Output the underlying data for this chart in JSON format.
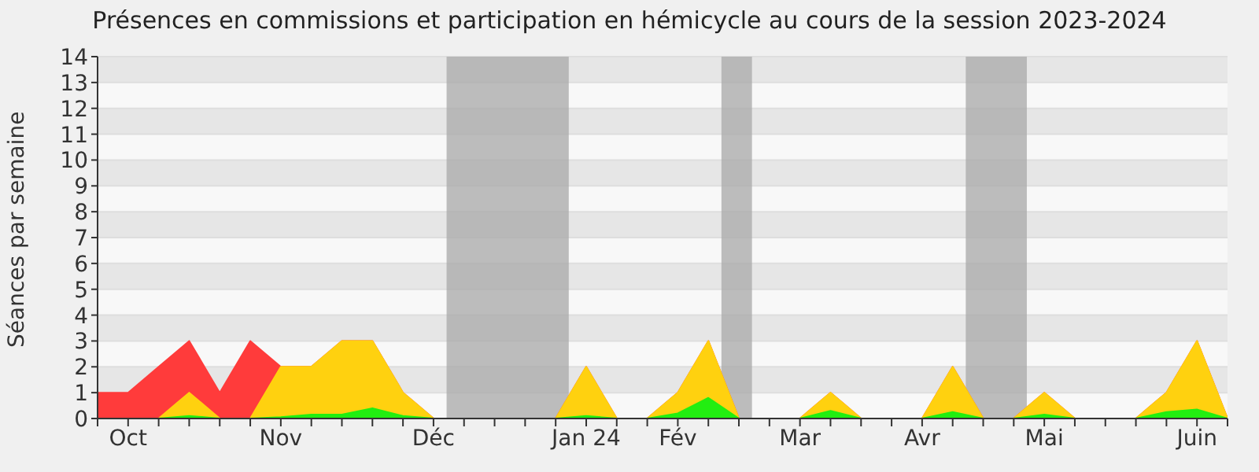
{
  "chart_data": {
    "type": "area",
    "title": "Présences en commissions et participation en hémicycle au cours de la session 2023-2024",
    "ylabel": "Séances par semaine",
    "x": [
      "2023-09-25",
      "2023-10-02",
      "2023-10-09",
      "2023-10-16",
      "2023-10-23",
      "2023-10-30",
      "2023-11-06",
      "2023-11-13",
      "2023-11-20",
      "2023-11-27",
      "2023-12-04",
      "2023-12-11",
      "2023-12-18",
      "2023-12-25",
      "2024-01-01",
      "2024-01-08",
      "2024-01-15",
      "2024-01-22",
      "2024-01-29",
      "2024-02-05",
      "2024-02-12",
      "2024-02-19",
      "2024-02-26",
      "2024-03-04",
      "2024-03-11",
      "2024-03-18",
      "2024-03-25",
      "2024-04-01",
      "2024-04-08",
      "2024-04-15",
      "2024-04-22",
      "2024-04-29",
      "2024-05-06",
      "2024-05-13",
      "2024-05-20",
      "2024-05-27",
      "2024-06-03",
      "2024-06-10"
    ],
    "series": [
      {
        "color": "#ff3b3b",
        "values": [
          1,
          1,
          2,
          3,
          1,
          3,
          2,
          2,
          3,
          3,
          1,
          0,
          0,
          0,
          0,
          0,
          2,
          0,
          0,
          1,
          3,
          0,
          0,
          0,
          1,
          0,
          0,
          0,
          2,
          0,
          0,
          1,
          0,
          0,
          0,
          1,
          3,
          0
        ]
      },
      {
        "color": "#ffd10f",
        "values": [
          null,
          null,
          0,
          1,
          0,
          0,
          2,
          2,
          3,
          3,
          1,
          0,
          0,
          0,
          0,
          0,
          2,
          0,
          0,
          1,
          3,
          0,
          0,
          0,
          1,
          0,
          0,
          0,
          2,
          0,
          0,
          1,
          0,
          0,
          0,
          1,
          3,
          0
        ]
      },
      {
        "color": "#22ee11",
        "values": [
          0,
          0,
          0,
          0.1,
          0,
          0,
          0.05,
          0.15,
          0.15,
          0.4,
          0.1,
          0,
          0,
          0,
          0,
          0,
          0.1,
          0,
          0,
          0.2,
          0.8,
          0,
          0,
          0,
          0.3,
          0,
          0,
          0,
          0.25,
          0,
          0,
          0.15,
          0,
          0,
          0,
          0.25,
          0.35,
          0
        ]
      }
    ],
    "xlim": [
      "2023-09-25",
      "2024-06-10"
    ],
    "xticks": [
      {
        "value": "2023-09-25",
        "label": null
      },
      {
        "value": "2023-10-02",
        "label": "Oct"
      },
      {
        "value": "2023-10-09",
        "label": null
      },
      {
        "value": "2023-10-16",
        "label": null
      },
      {
        "value": "2023-10-23",
        "label": null
      },
      {
        "value": "2023-10-30",
        "label": null
      },
      {
        "value": "2023-11-06",
        "label": "Nov"
      },
      {
        "value": "2023-11-13",
        "label": null
      },
      {
        "value": "2023-11-20",
        "label": null
      },
      {
        "value": "2023-11-27",
        "label": null
      },
      {
        "value": "2023-12-04",
        "label": null
      },
      {
        "value": "2023-12-11",
        "label": "Déc"
      },
      {
        "value": "2023-12-18",
        "label": null
      },
      {
        "value": "2023-12-25",
        "label": null
      },
      {
        "value": "2024-01-01",
        "label": null
      },
      {
        "value": "2024-01-08",
        "label": null
      },
      {
        "value": "2024-01-15",
        "label": "Jan 24"
      },
      {
        "value": "2024-01-22",
        "label": null
      },
      {
        "value": "2024-01-29",
        "label": null
      },
      {
        "value": "2024-02-05",
        "label": "Fév"
      },
      {
        "value": "2024-02-12",
        "label": null
      },
      {
        "value": "2024-02-19",
        "label": null
      },
      {
        "value": "2024-02-26",
        "label": null
      },
      {
        "value": "2024-03-04",
        "label": "Mar"
      },
      {
        "value": "2024-03-11",
        "label": null
      },
      {
        "value": "2024-03-18",
        "label": null
      },
      {
        "value": "2024-03-25",
        "label": null
      },
      {
        "value": "2024-04-01",
        "label": "Avr"
      },
      {
        "value": "2024-04-08",
        "label": null
      },
      {
        "value": "2024-04-15",
        "label": null
      },
      {
        "value": "2024-04-22",
        "label": null
      },
      {
        "value": "2024-04-29",
        "label": "Mai"
      },
      {
        "value": "2024-05-06",
        "label": null
      },
      {
        "value": "2024-05-13",
        "label": null
      },
      {
        "value": "2024-05-20",
        "label": null
      },
      {
        "value": "2024-05-27",
        "label": null
      },
      {
        "value": "2024-06-03",
        "label": "Juin"
      },
      {
        "value": "2024-06-10",
        "label": null
      }
    ],
    "ylim": [
      0,
      14
    ],
    "yticks": [
      0,
      1,
      2,
      3,
      4,
      5,
      6,
      7,
      8,
      9,
      10,
      11,
      12,
      13,
      14
    ],
    "grid": "y",
    "bands": [
      {
        "axis": "x",
        "from": "2023-12-14",
        "to": "2024-01-11",
        "color": "#a8a8a8"
      },
      {
        "axis": "x",
        "from": "2024-02-15",
        "to": "2024-02-22",
        "color": "#a8a8a8"
      },
      {
        "axis": "x",
        "from": "2024-04-11",
        "to": "2024-04-25",
        "color": "#a8a8a8"
      }
    ]
  }
}
